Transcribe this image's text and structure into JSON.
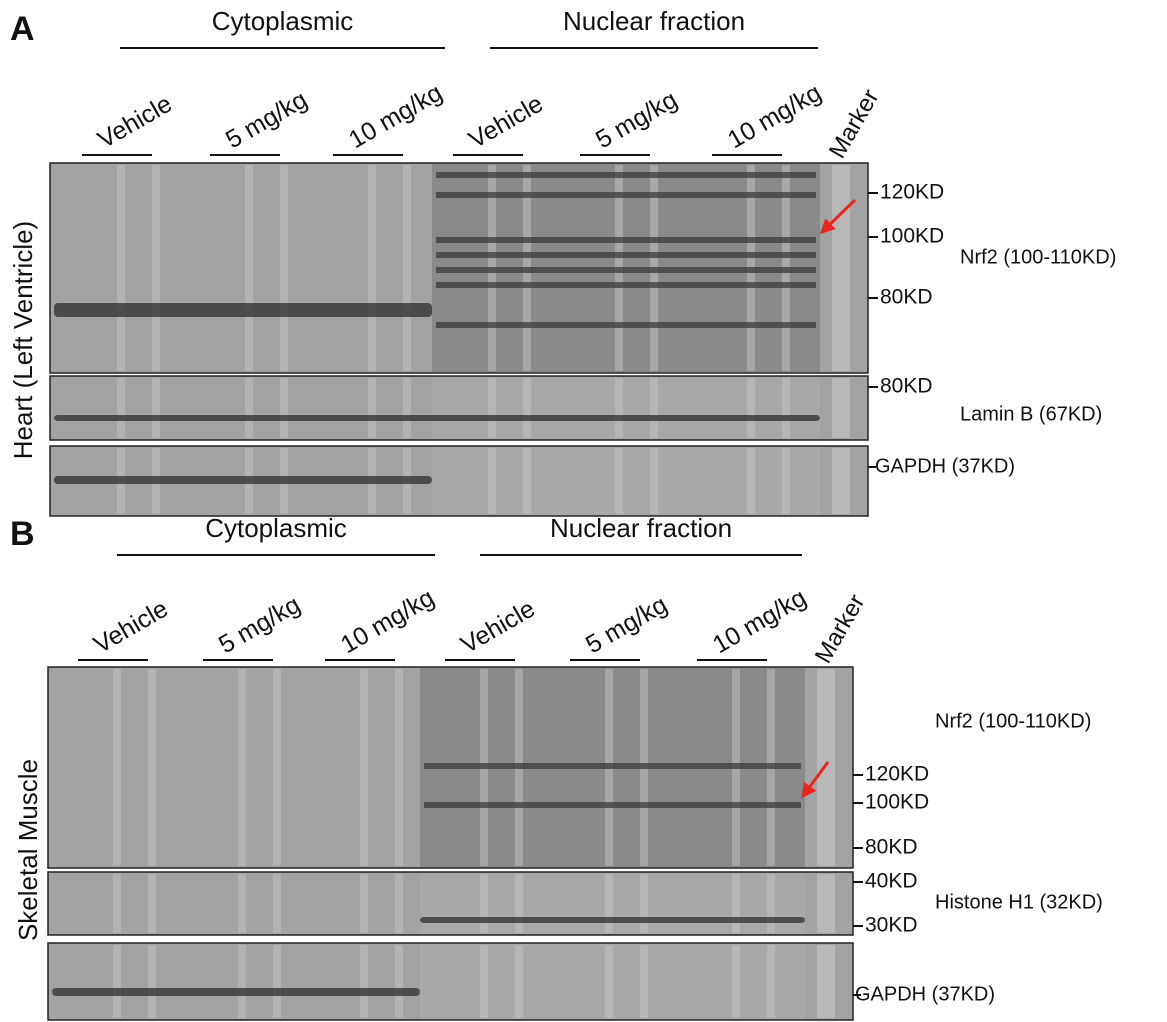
{
  "panels": [
    {
      "letter": "A",
      "tissue": "Heart (Left Ventricle)",
      "fractions": [
        "Cytoplasmic",
        "Nuclear fraction"
      ],
      "groups": [
        "Vehicle",
        "5 mg/kg",
        "10 mg/kg",
        "Vehicle",
        "5 mg/kg",
        "10 mg/kg"
      ],
      "marker": "Marker",
      "blots": [
        {
          "protein": "Nrf2 (100-110KD)",
          "markers": [
            "120KD",
            "100KD",
            "80KD"
          ]
        },
        {
          "protein": "Lamin B (67KD)",
          "markers": [
            "80KD"
          ]
        },
        {
          "protein": "GAPDH (37KD)",
          "markers": []
        }
      ]
    },
    {
      "letter": "B",
      "tissue": "Skeletal Muscle",
      "fractions": [
        "Cytoplasmic",
        "Nuclear fraction"
      ],
      "groups": [
        "Vehicle",
        "5 mg/kg",
        "10 mg/kg",
        "Vehicle",
        "5 mg/kg",
        "10 mg/kg"
      ],
      "marker": "Marker",
      "blots": [
        {
          "protein": "Nrf2 (100-110KD)",
          "markers": [
            "120KD",
            "100KD",
            "80KD"
          ]
        },
        {
          "protein": "Histone H1 (32KD)",
          "markers": [
            "40KD",
            "30KD"
          ]
        },
        {
          "protein": "GAPDH (37KD)",
          "markers": []
        }
      ]
    }
  ]
}
